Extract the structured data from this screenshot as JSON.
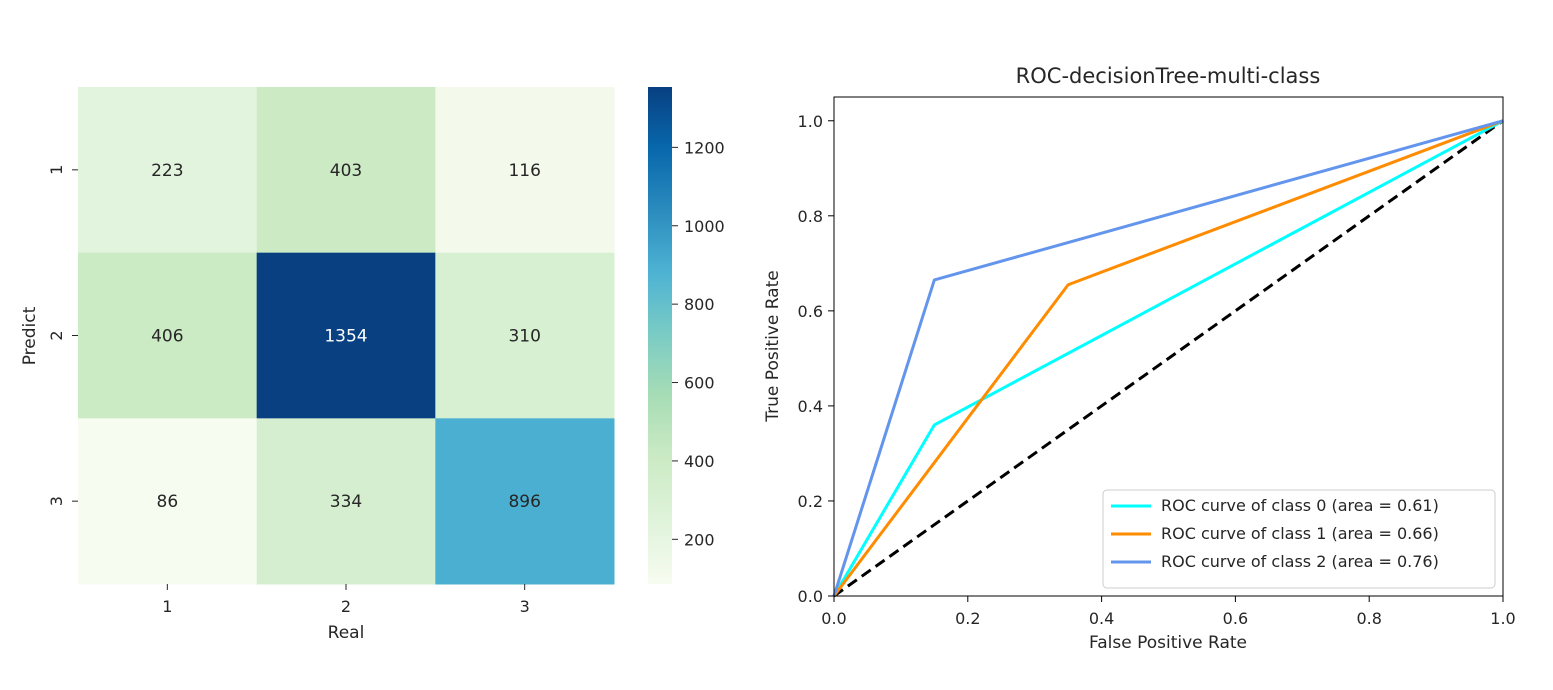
{
  "chart_data": [
    {
      "type": "heatmap",
      "title": "",
      "xlabel": "Real",
      "ylabel": "Predict",
      "x_categories": [
        "1",
        "2",
        "3"
      ],
      "y_categories": [
        "1",
        "2",
        "3"
      ],
      "values": [
        [
          223,
          403,
          116
        ],
        [
          406,
          1354,
          310
        ],
        [
          86,
          334,
          896
        ]
      ],
      "colormap": "GnBu",
      "colorbar": {
        "range": [
          86,
          1354
        ],
        "ticks": [
          200,
          400,
          600,
          800,
          1000,
          1200
        ],
        "tick_labels": [
          "200",
          "400",
          "600",
          "800",
          "1000",
          "1200"
        ]
      }
    },
    {
      "type": "line",
      "title": "ROC-decisionTree-multi-class",
      "xlabel": "False Positive Rate",
      "ylabel": "True Positive Rate",
      "xlim": [
        0.0,
        1.0
      ],
      "ylim": [
        0.0,
        1.05
      ],
      "x_ticks": [
        "0.0",
        "0.2",
        "0.4",
        "0.6",
        "0.8",
        "1.0"
      ],
      "y_ticks": [
        "0.0",
        "0.2",
        "0.4",
        "0.6",
        "0.8",
        "1.0"
      ],
      "legend_position": "lower-right",
      "series": [
        {
          "name": "ROC curve of class 0 (area = 0.61)",
          "color": "#00ffff",
          "x": [
            0.0,
            0.15,
            1.0
          ],
          "y": [
            0.0,
            0.36,
            1.0
          ]
        },
        {
          "name": "ROC curve of class 1 (area = 0.66)",
          "color": "#ff8c00",
          "x": [
            0.0,
            0.35,
            1.0
          ],
          "y": [
            0.0,
            0.655,
            1.0
          ]
        },
        {
          "name": "ROC curve of class 2 (area = 0.76)",
          "color": "#6495ed",
          "x": [
            0.0,
            0.15,
            1.0
          ],
          "y": [
            0.0,
            0.665,
            1.0
          ]
        },
        {
          "name": "",
          "color": "#000000",
          "dashed": true,
          "x": [
            0.0,
            1.0
          ],
          "y": [
            0.0,
            1.0
          ]
        }
      ]
    }
  ]
}
